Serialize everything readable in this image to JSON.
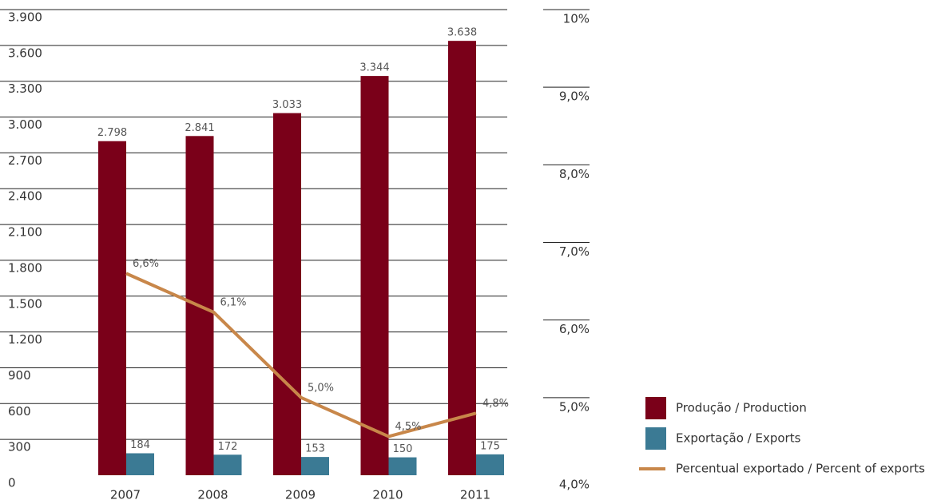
{
  "chart_data": {
    "type": "bar",
    "categories": [
      "2007",
      "2008",
      "2009",
      "2010",
      "2011"
    ],
    "series": [
      {
        "name": "Produção / Production",
        "color": "#7a0019",
        "values": [
          2798,
          2841,
          3033,
          3344,
          3638
        ],
        "value_labels": [
          "2.798",
          "2.841",
          "3.033",
          "3.344",
          "3.638"
        ]
      },
      {
        "name": "Exportação / Exports",
        "color": "#3b7a94",
        "values": [
          184,
          172,
          153,
          150,
          175
        ]
      },
      {
        "name": "Percentual exportado / Percent of exports",
        "type": "line",
        "axis": "y2",
        "color": "#c8874a",
        "values": [
          6.6,
          6.1,
          5.0,
          4.5,
          4.8
        ],
        "value_labels": [
          "6,6%",
          "6,1%",
          "5,0%",
          "4,5%",
          "4,8%"
        ]
      }
    ],
    "ylim": [
      0,
      3900
    ],
    "yticks": [
      0,
      300,
      600,
      900,
      {
        "value": 1200,
        "label": "1.200"
      },
      {
        "value": 1500,
        "label": "1.500"
      },
      {
        "value": 1800,
        "label": "1.800"
      },
      {
        "value": 2100,
        "label": "2.100"
      },
      {
        "value": 2400,
        "label": "2.400"
      },
      {
        "value": 2700,
        "label": "2.700"
      },
      {
        "value": 3000,
        "label": "3.000"
      },
      {
        "value": 3300,
        "label": "3.300"
      },
      {
        "value": 3600,
        "label": "3.600"
      },
      {
        "value": 3900,
        "label": "3.900"
      }
    ],
    "y2lim": [
      4,
      10
    ],
    "y2ticks": [
      {
        "value": 4,
        "label": "4,0%"
      },
      {
        "value": 5,
        "label": "5,0%"
      },
      {
        "value": 6,
        "label": "6,0%"
      },
      {
        "value": 7,
        "label": "7,0%"
      },
      {
        "value": 8,
        "label": "8,0%"
      },
      {
        "value": 9,
        "label": "9,0%"
      },
      {
        "value": 10,
        "label": "10%"
      }
    ],
    "grid": true,
    "legend": "lower right"
  }
}
